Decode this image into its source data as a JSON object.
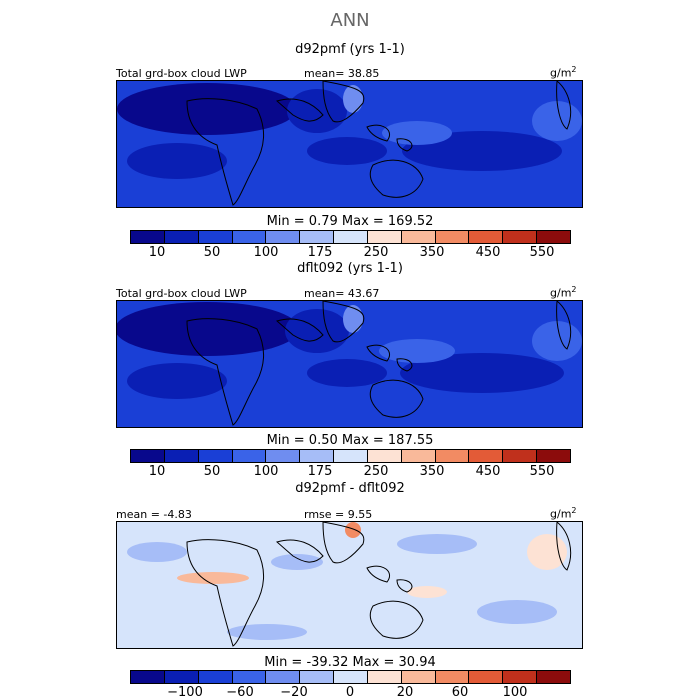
{
  "page_title": "ANN",
  "palette": [
    "#08088c",
    "#0a1fb4",
    "#1a3fd6",
    "#3a63e8",
    "#6f8df0",
    "#a6bdf7",
    "#d6e4fb",
    "#fde2d4",
    "#f9b99a",
    "#f28b63",
    "#e35b37",
    "#c0301c",
    "#8c0c0c"
  ],
  "chart_data": [
    {
      "type": "heatmap",
      "title": "d92pmf (yrs 1-1)",
      "field_label": "Total grd-box cloud LWP",
      "stat_left": "mean=  38.85",
      "units": "g/m",
      "units_exp": "2",
      "min_max": "Min =    0.79  Max =  169.52",
      "colorbar_ticks": [
        "10",
        "50",
        "100",
        "175",
        "250",
        "350",
        "450",
        "550"
      ],
      "colorbar_levels": 13
    },
    {
      "type": "heatmap",
      "title": "dflt092 (yrs 1-1)",
      "field_label": "Total grd-box cloud LWP",
      "stat_left": "mean=  43.67",
      "units": "g/m",
      "units_exp": "2",
      "min_max": "Min =    0.50  Max =  187.55",
      "colorbar_ticks": [
        "10",
        "50",
        "100",
        "175",
        "250",
        "350",
        "450",
        "550"
      ],
      "colorbar_levels": 13
    },
    {
      "type": "heatmap",
      "title": "d92pmf - dflt092",
      "stat_left": "mean =  -4.83",
      "stat_mid": "rmse =   9.55",
      "units": "g/m",
      "units_exp": "2",
      "min_max": "Min = -39.32  Max =  30.94",
      "colorbar_ticks": [
        "−100",
        "−60",
        "−20",
        "0",
        "20",
        "60",
        "100"
      ],
      "colorbar_levels": 13
    }
  ]
}
